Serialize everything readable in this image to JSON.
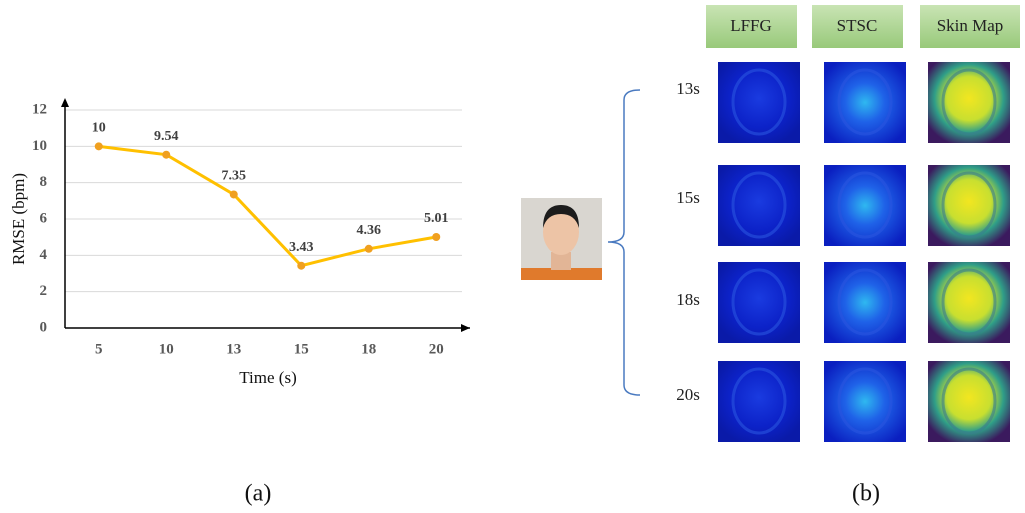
{
  "chart_data": {
    "type": "line",
    "categories": [
      "5",
      "10",
      "13",
      "15",
      "18",
      "20"
    ],
    "values": [
      10,
      9.54,
      7.35,
      3.43,
      4.36,
      5.01
    ],
    "color": "#FFC000",
    "marker_color": "#F0A020",
    "xlabel": "Time (s)",
    "ylabel": "RMSE (bpm)",
    "ylim": [
      0,
      12
    ],
    "yticks": [
      0,
      2,
      4,
      6,
      8,
      10,
      12
    ],
    "grid": true,
    "caption": "(a)"
  },
  "panel_b": {
    "columns": [
      "LFFG",
      "STSC",
      "Skin Map"
    ],
    "rows": [
      "13s",
      "15s",
      "18s",
      "20s"
    ],
    "caption": "(b)"
  }
}
